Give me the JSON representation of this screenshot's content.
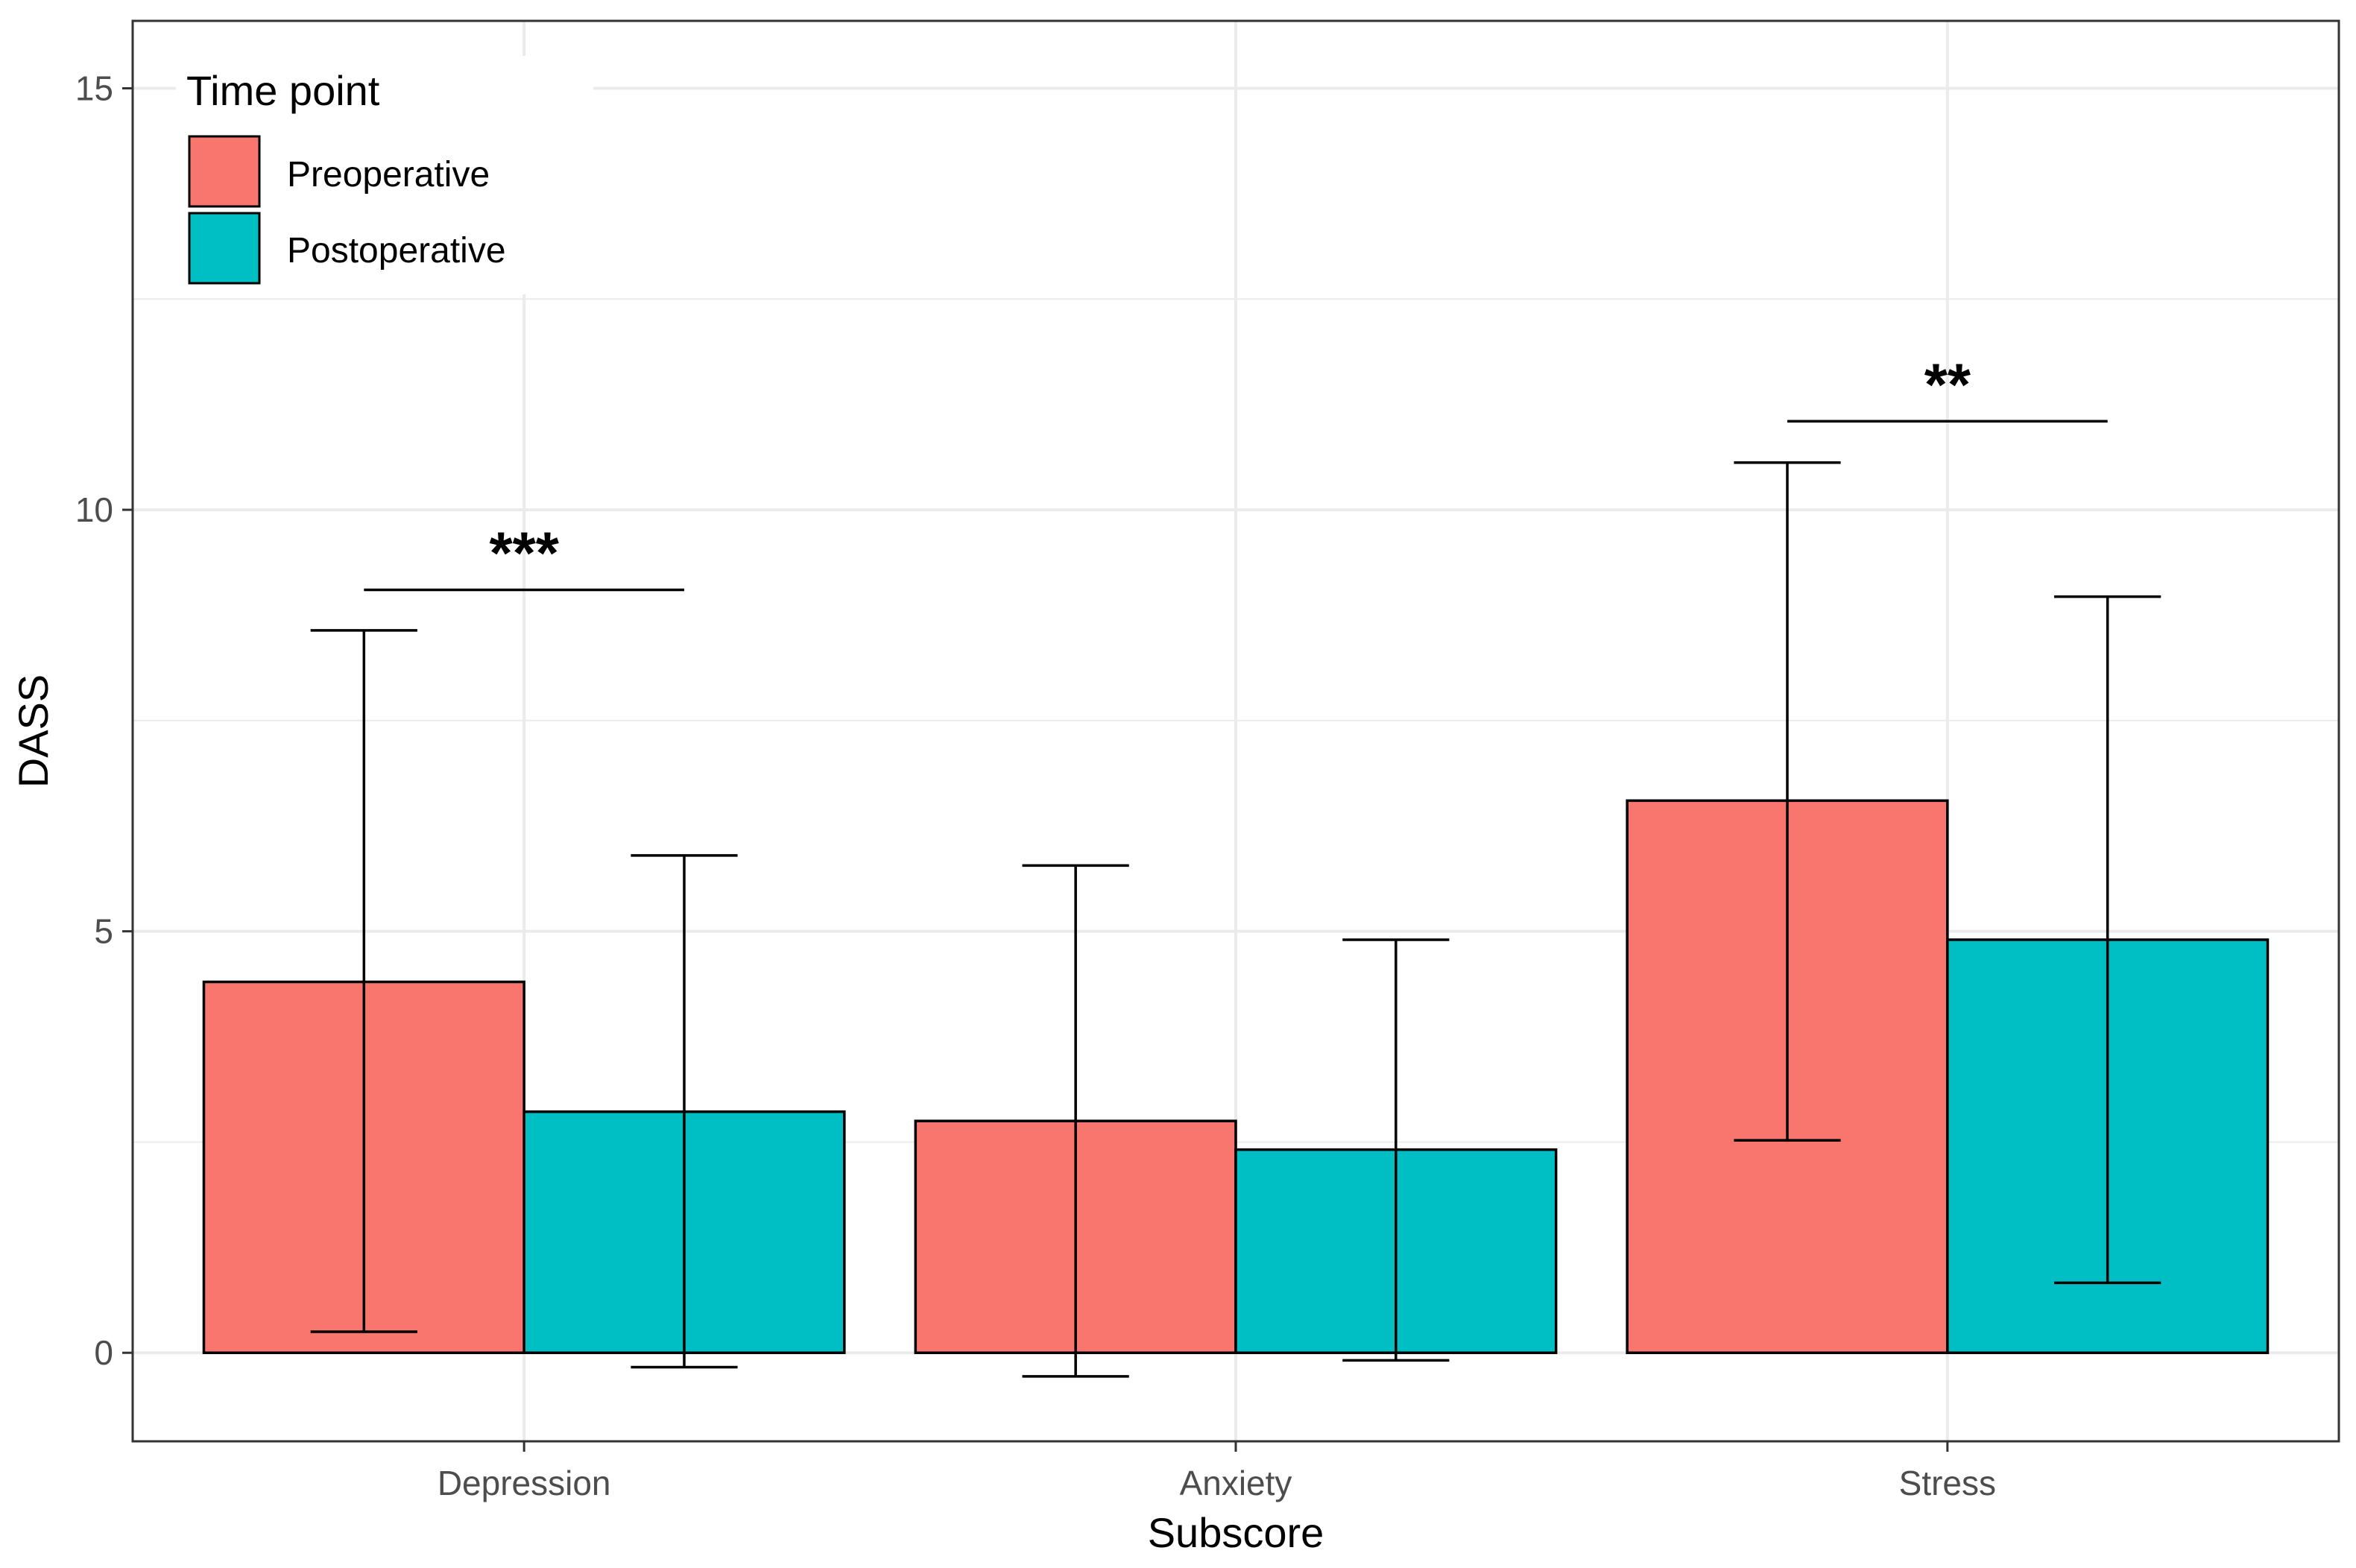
{
  "chart_data": {
    "type": "bar",
    "xlabel": "Subscore",
    "ylabel": "DASS",
    "categories": [
      "Depression",
      "Anxiety",
      "Stress"
    ],
    "yticks": [
      0,
      5,
      10,
      15
    ],
    "ylim": [
      -1.05,
      15.8
    ],
    "grid": true,
    "legend": {
      "title": "Time point",
      "position": "top-left"
    },
    "series": [
      {
        "name": "Preoperative",
        "color": "#F8766D",
        "values": [
          4.4,
          2.75,
          6.55
        ],
        "err_low": [
          0.25,
          -0.28,
          2.52
        ],
        "err_high": [
          8.57,
          5.78,
          10.56
        ]
      },
      {
        "name": "Postoperative",
        "color": "#00BFC4",
        "values": [
          2.86,
          2.41,
          4.9
        ],
        "err_low": [
          -0.17,
          -0.09,
          0.83
        ],
        "err_high": [
          5.9,
          4.9,
          8.97
        ]
      }
    ],
    "annotations": [
      {
        "category_index": 0,
        "label": "***",
        "y": 9.05
      },
      {
        "category_index": 2,
        "label": "**",
        "y": 11.05
      }
    ]
  }
}
